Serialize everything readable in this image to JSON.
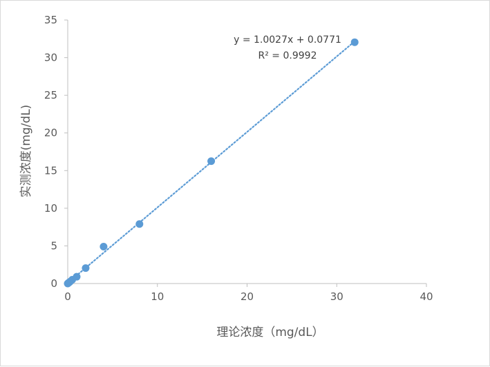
{
  "chart_data": {
    "type": "scatter",
    "xlabel": "理论浓度（mg/dL）",
    "ylabel": "实测浓度(mg/dL)",
    "xlim": [
      0,
      40
    ],
    "ylim": [
      0,
      35
    ],
    "x_ticks": [
      0,
      10,
      20,
      30,
      40
    ],
    "y_ticks": [
      0,
      5,
      10,
      15,
      20,
      25,
      30,
      35
    ],
    "grid": false,
    "legend": "none",
    "series": [
      {
        "color": "#5b9bd5",
        "points": [
          {
            "x": 0,
            "y": 0
          },
          {
            "x": 0.125,
            "y": 0.12
          },
          {
            "x": 0.25,
            "y": 0.24
          },
          {
            "x": 0.5,
            "y": 0.5
          },
          {
            "x": 1,
            "y": 0.9
          },
          {
            "x": 2,
            "y": 2.05
          },
          {
            "x": 4,
            "y": 4.9
          },
          {
            "x": 8,
            "y": 7.9
          },
          {
            "x": 16,
            "y": 16.25
          },
          {
            "x": 32,
            "y": 32.05
          }
        ]
      }
    ],
    "trendline": {
      "type": "linear",
      "style": "dotted",
      "color": "#5b9bd5",
      "slope": 1.0027,
      "intercept": 0.0771,
      "x_range": [
        0,
        32
      ],
      "equation": "y = 1.0027x + 0.0771",
      "r_squared": "R² = 0.9992"
    },
    "axis_color": "#bfbfbf"
  }
}
